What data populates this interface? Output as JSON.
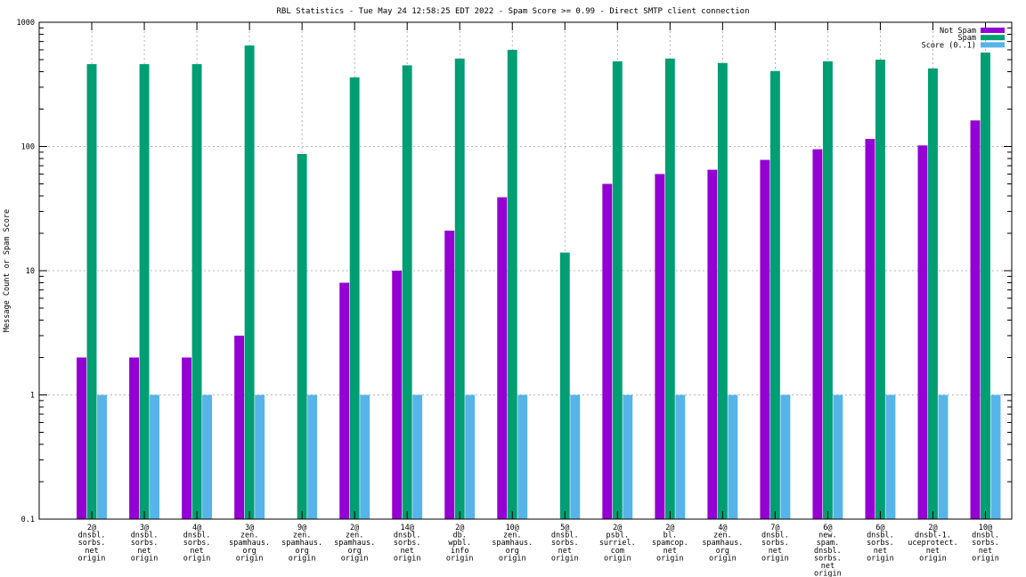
{
  "chart_data": {
    "type": "bar",
    "title": "RBL Statistics - Tue May 24 12:58:25 EDT 2022 - Spam Score >= 0.99 - Direct SMTP client connection",
    "xlabel": "",
    "ylabel": "Message Count or Spam Score",
    "yscale": "log",
    "ylim": [
      0.1,
      1000
    ],
    "yticks": [
      "0.1",
      "1",
      "10",
      "100",
      "1000"
    ],
    "grid": true,
    "legend_position": "top-right",
    "categories": [
      [
        "2@",
        "dnsbl.",
        "sorbs.",
        "net",
        "origin"
      ],
      [
        "3@",
        "dnsbl.",
        "sorbs.",
        "net",
        "origin"
      ],
      [
        "4@",
        "dnsbl.",
        "sorbs.",
        "net",
        "origin"
      ],
      [
        "3@",
        "zen.",
        "spamhaus.",
        "org",
        "origin"
      ],
      [
        "9@",
        "zen.",
        "spamhaus.",
        "org",
        "origin"
      ],
      [
        "2@",
        "zen.",
        "spamhaus.",
        "org",
        "origin"
      ],
      [
        "14@",
        "dnsbl.",
        "sorbs.",
        "net",
        "origin"
      ],
      [
        "2@",
        "db.",
        "wpbl.",
        "info",
        "origin"
      ],
      [
        "10@",
        "zen.",
        "spamhaus.",
        "org",
        "origin"
      ],
      [
        "5@",
        "dnsbl.",
        "sorbs.",
        "net",
        "origin"
      ],
      [
        "2@",
        "psbl.",
        "surriel.",
        "com",
        "origin"
      ],
      [
        "2@",
        "bl.",
        "spamcop.",
        "net",
        "origin"
      ],
      [
        "4@",
        "zen.",
        "spamhaus.",
        "org",
        "origin"
      ],
      [
        "7@",
        "dnsbl.",
        "sorbs.",
        "net",
        "origin"
      ],
      [
        "6@",
        "new.",
        "spam.",
        "dnsbl.",
        "sorbs.",
        "net",
        "origin"
      ],
      [
        "6@",
        "dnsbl.",
        "sorbs.",
        "net",
        "origin"
      ],
      [
        "2@",
        "dnsbl-1.",
        "uceprotect.",
        "net",
        "origin"
      ],
      [
        "10@",
        "dnsbl.",
        "sorbs.",
        "net",
        "origin"
      ]
    ],
    "series": [
      {
        "name": "Not Spam",
        "color": "#9400d3",
        "values": [
          2,
          2,
          2,
          3,
          null,
          8,
          10,
          21,
          39,
          null,
          50,
          60,
          65,
          78,
          95,
          115,
          102,
          162
        ]
      },
      {
        "name": "Spam",
        "color": "#009e73",
        "values": [
          460,
          460,
          460,
          650,
          87,
          360,
          450,
          510,
          600,
          14,
          485,
          510,
          470,
          405,
          485,
          500,
          425,
          570
        ]
      },
      {
        "name": "Score (0..1)",
        "color": "#56b4e9",
        "values": [
          1,
          1,
          1,
          1,
          1,
          1,
          1,
          1,
          1,
          1,
          1,
          1,
          1,
          1,
          1,
          1,
          1,
          1
        ]
      }
    ]
  }
}
